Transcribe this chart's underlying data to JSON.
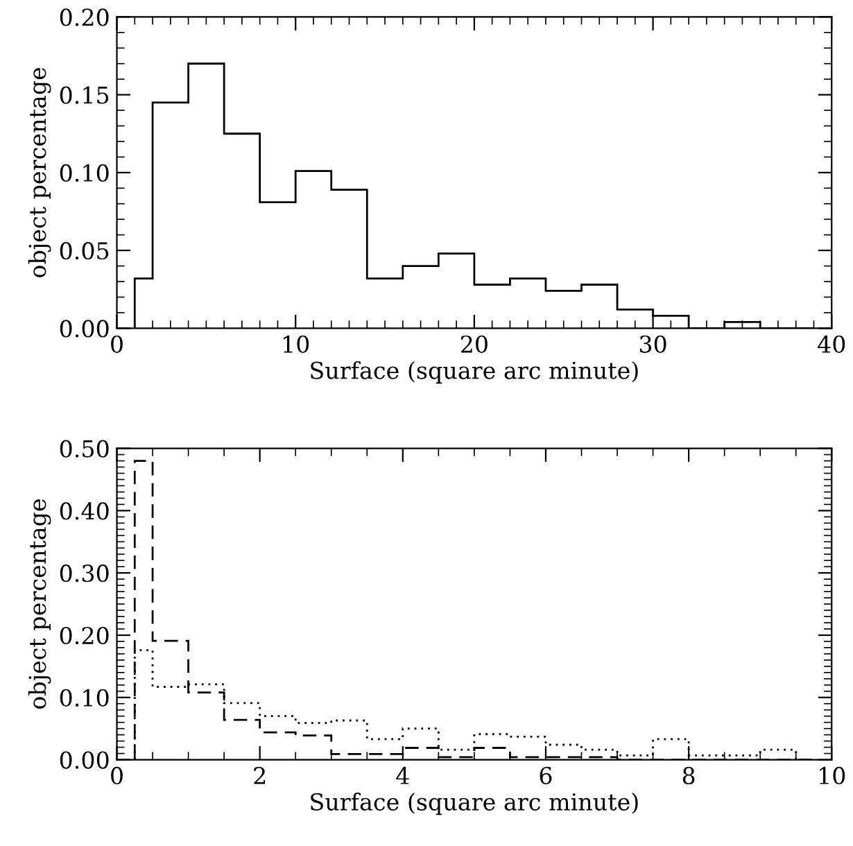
{
  "chart_data": [
    {
      "type": "histogram",
      "xlabel": "Surface (square arc minute)",
      "ylabel": "object percentage",
      "bins": [
        1,
        2,
        4,
        6,
        8,
        10,
        12,
        14,
        16,
        18,
        20,
        22,
        24,
        26,
        28,
        30,
        32,
        34,
        36,
        38,
        39
      ],
      "series": [
        {
          "color": "#000000",
          "line_style": "solid",
          "values": [
            0.032,
            0.145,
            0.17,
            0.125,
            0.081,
            0.101,
            0.089,
            0.032,
            0.04,
            0.048,
            0.028,
            0.032,
            0.024,
            0.028,
            0.012,
            0.008,
            0,
            0.004,
            0,
            0
          ]
        }
      ],
      "xlim": [
        0,
        40
      ],
      "xticks": [
        0,
        10,
        20,
        30,
        40
      ],
      "ylim": [
        0,
        0.2
      ],
      "yticks": [
        {
          "value": 0,
          "label": "0.00"
        },
        {
          "value": 0.05,
          "label": "0.05"
        },
        {
          "value": 0.1,
          "label": "0.10"
        },
        {
          "value": 0.15,
          "label": "0.15"
        },
        {
          "value": 0.2,
          "label": "0.20"
        }
      ],
      "grid": false,
      "legend": false
    },
    {
      "type": "histogram",
      "xlabel": "Surface (square arc minute)",
      "ylabel": "object percentage",
      "bins": [
        0.25,
        0.5,
        1,
        1.5,
        2,
        2.5,
        3,
        3.5,
        4,
        4.5,
        5,
        5.5,
        6,
        6.5,
        7,
        7.5,
        8,
        8.5,
        9,
        9.5,
        9.75
      ],
      "series": [
        {
          "color": "#000000",
          "line_style": "dashed",
          "values": [
            0.48,
            0.191,
            0.108,
            0.064,
            0.044,
            0.039,
            0.009,
            0.009,
            0.019,
            0.004,
            0.019,
            0.004,
            0.004,
            0.004,
            0,
            0,
            0,
            0,
            0,
            0
          ]
        },
        {
          "color": "#000000",
          "line_style": "dotted",
          "values": [
            0.176,
            0.117,
            0.121,
            0.091,
            0.07,
            0.059,
            0.063,
            0.033,
            0.05,
            0.016,
            0.041,
            0.037,
            0.024,
            0.016,
            0.007,
            0.033,
            0.007,
            0.007,
            0.016,
            0
          ]
        }
      ],
      "xlim": [
        0,
        10
      ],
      "xticks": [
        0,
        2,
        4,
        6,
        8,
        10
      ],
      "ylim": [
        0,
        0.5
      ],
      "yticks": [
        {
          "value": 0,
          "label": "0.00"
        },
        {
          "value": 0.1,
          "label": "0.10"
        },
        {
          "value": 0.2,
          "label": "0.20"
        },
        {
          "value": 0.3,
          "label": "0.30"
        },
        {
          "value": 0.4,
          "label": "0.40"
        },
        {
          "value": 0.5,
          "label": "0.50"
        }
      ],
      "grid": false,
      "legend": false
    }
  ]
}
